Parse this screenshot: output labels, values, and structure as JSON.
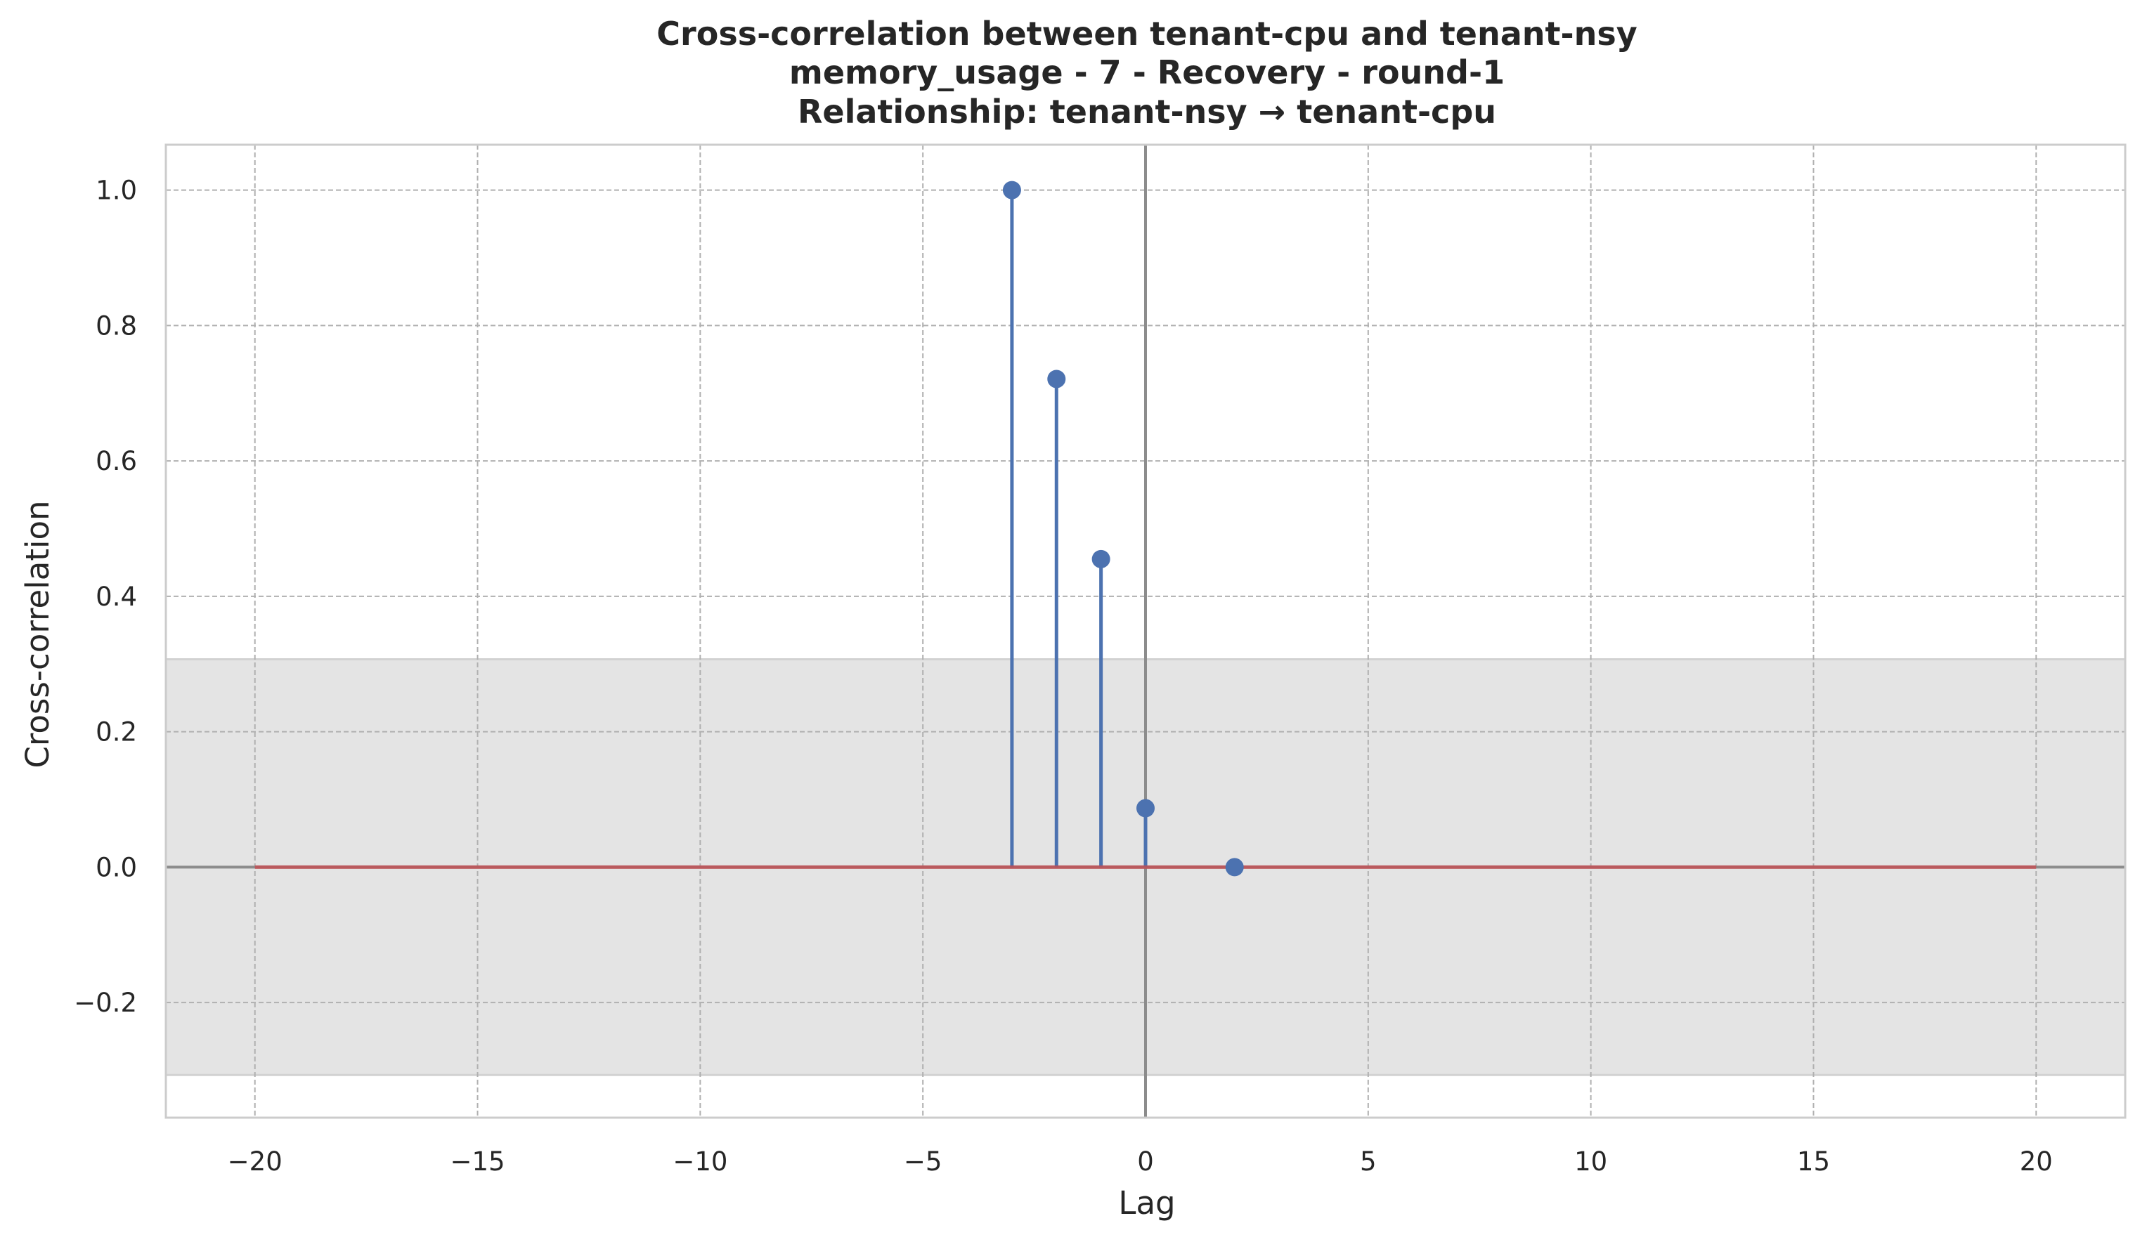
{
  "chart_data": {
    "type": "stem",
    "title": [
      "Cross-correlation between tenant-cpu and tenant-nsy",
      "memory_usage - 7 - Recovery - round-1",
      "Relationship: tenant-nsy → tenant-cpu"
    ],
    "xlabel": "Lag",
    "ylabel": "Cross-correlation",
    "xlim": [
      -22,
      22
    ],
    "ylim": [
      -0.37,
      1.067
    ],
    "xticks": [
      -20,
      -15,
      -10,
      -5,
      0,
      5,
      10,
      15,
      20
    ],
    "xtick_labels": [
      "−20",
      "−15",
      "−10",
      "−5",
      "0",
      "5",
      "10",
      "15",
      "20"
    ],
    "yticks": [
      -0.2,
      0.0,
      0.2,
      0.4,
      0.6,
      0.8,
      1.0
    ],
    "ytick_labels": [
      "−0.2",
      "0.0",
      "0.2",
      "0.4",
      "0.6",
      "0.8",
      "1.0"
    ],
    "grid": true,
    "confidence_band": [
      -0.307,
      0.307
    ],
    "baseline": {
      "y": 0,
      "x_range": [
        -20,
        20
      ]
    },
    "lags": [
      -3,
      -2,
      -1,
      0,
      2
    ],
    "values": [
      1.0,
      0.721,
      0.455,
      0.087,
      0.0
    ],
    "colors": {
      "stem": "#4c72b0",
      "baseline": "#c44e52",
      "band": "#e4e4e4",
      "grid": "#b0b0b0",
      "zero_lines": "#8c8c8c",
      "frame": "#cccccc"
    }
  }
}
